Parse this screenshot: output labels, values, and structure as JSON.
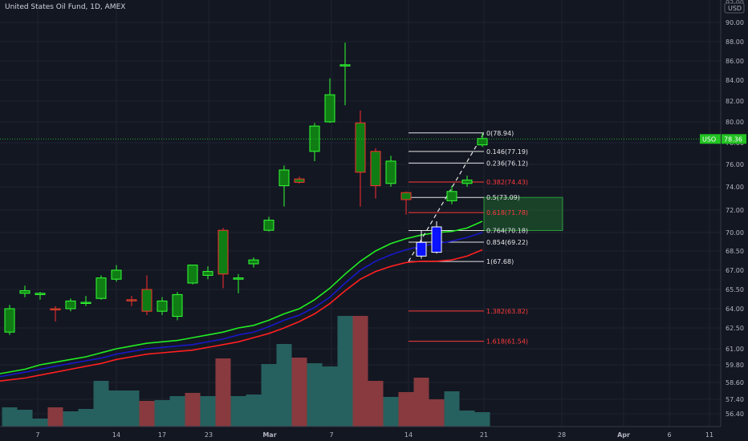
{
  "header": {
    "title": "United States Oil Fund, 1D, AMEX"
  },
  "currency_label": "USD",
  "price_badge": {
    "symbol": "USO",
    "value": "78.36"
  },
  "colors": {
    "background": "#131722",
    "up_body": "#0f7d14",
    "up_border": "#33ff33",
    "down_body": "#0f7d14",
    "blue_body": "#0a12ff",
    "red_border": "#ff2d2d",
    "ema_green": "#22ee22",
    "ema_blue": "#1818c8",
    "ema_red": "#ff1f1f",
    "volume_up": "#26605f",
    "volume_down": "#883a3e",
    "fib_white": "#e6e6e6",
    "fib_red": "#ff3b3b",
    "badge_green": "#22c322"
  },
  "chart_data": {
    "type": "candlestick",
    "title": "United States Oil Fund, 1D, AMEX",
    "y_axis": {
      "ticks": [
        "90.00",
        "88.00",
        "86.00",
        "84.00",
        "82.00",
        "80.00",
        "78.00",
        "76.00",
        "74.00",
        "72.00",
        "70.00",
        "68.50",
        "67.00",
        "65.50",
        "64.00",
        "62.50",
        "61.00",
        "59.80",
        "58.60",
        "57.40",
        "56.40"
      ],
      "top_partial": "92.00"
    },
    "x_axis": {
      "ticks": [
        "7",
        "14",
        "17",
        "23",
        "Mar",
        "7",
        "14",
        "21",
        "28",
        "Apr",
        "6",
        "11"
      ]
    },
    "candles": [
      {
        "o": 62.2,
        "h": 64.3,
        "l": 62.0,
        "c": 64.0,
        "color": "up"
      },
      {
        "o": 65.2,
        "h": 65.8,
        "l": 64.9,
        "c": 65.4,
        "color": "up"
      },
      {
        "o": 65.1,
        "h": 65.3,
        "l": 64.7,
        "c": 65.2,
        "color": "up"
      },
      {
        "o": 64.0,
        "h": 64.2,
        "l": 63.0,
        "c": 64.0,
        "color": "down"
      },
      {
        "o": 64.0,
        "h": 64.8,
        "l": 63.8,
        "c": 64.6,
        "color": "up"
      },
      {
        "o": 64.5,
        "h": 65.0,
        "l": 64.2,
        "c": 64.5,
        "color": "up"
      },
      {
        "o": 64.8,
        "h": 66.6,
        "l": 64.7,
        "c": 66.4,
        "color": "up"
      },
      {
        "o": 66.3,
        "h": 67.4,
        "l": 66.1,
        "c": 67.0,
        "color": "up"
      },
      {
        "o": 64.7,
        "h": 65.0,
        "l": 64.2,
        "c": 64.7,
        "color": "down"
      },
      {
        "o": 65.5,
        "h": 66.6,
        "l": 63.5,
        "c": 63.8,
        "color": "down"
      },
      {
        "o": 64.6,
        "h": 64.9,
        "l": 63.5,
        "c": 63.8,
        "color": "up"
      },
      {
        "o": 63.4,
        "h": 65.3,
        "l": 63.1,
        "c": 65.1,
        "color": "up"
      },
      {
        "o": 66.0,
        "h": 67.4,
        "l": 65.9,
        "c": 67.4,
        "color": "up"
      },
      {
        "o": 66.6,
        "h": 67.3,
        "l": 66.3,
        "c": 66.9,
        "color": "up"
      },
      {
        "o": 70.2,
        "h": 70.4,
        "l": 65.6,
        "c": 66.7,
        "color": "down"
      },
      {
        "o": 66.3,
        "h": 66.7,
        "l": 65.2,
        "c": 66.4,
        "color": "up"
      },
      {
        "o": 67.5,
        "h": 68.0,
        "l": 67.2,
        "c": 67.8,
        "color": "up"
      },
      {
        "o": 70.2,
        "h": 71.4,
        "l": 70.1,
        "c": 71.1,
        "color": "up"
      },
      {
        "o": 74.1,
        "h": 75.9,
        "l": 72.3,
        "c": 75.5,
        "color": "up"
      },
      {
        "o": 74.7,
        "h": 74.9,
        "l": 74.3,
        "c": 74.4,
        "color": "down"
      },
      {
        "o": 77.2,
        "h": 79.9,
        "l": 76.3,
        "c": 79.6,
        "color": "up"
      },
      {
        "o": 80.0,
        "h": 84.2,
        "l": 79.9,
        "c": 82.6,
        "color": "up"
      },
      {
        "o": 85.6,
        "h": 87.9,
        "l": 81.6,
        "c": 85.6,
        "color": "up"
      },
      {
        "o": 79.9,
        "h": 81.1,
        "l": 72.3,
        "c": 75.3,
        "color": "down"
      },
      {
        "o": 77.2,
        "h": 77.5,
        "l": 73.0,
        "c": 74.1,
        "color": "down"
      },
      {
        "o": 74.3,
        "h": 76.8,
        "l": 74.0,
        "c": 76.3,
        "color": "up"
      },
      {
        "o": 73.5,
        "h": 73.6,
        "l": 71.6,
        "c": 72.9,
        "color": "down"
      },
      {
        "o": 68.1,
        "h": 70.2,
        "l": 67.9,
        "c": 69.2,
        "color": "blue"
      },
      {
        "o": 70.5,
        "h": 71.0,
        "l": 68.3,
        "c": 68.4,
        "color": "blue"
      },
      {
        "o": 72.8,
        "h": 74.1,
        "l": 72.5,
        "c": 73.6,
        "color": "up"
      },
      {
        "o": 74.3,
        "h": 75.0,
        "l": 74.0,
        "c": 74.6,
        "color": "up"
      },
      {
        "o": 77.8,
        "h": 78.9,
        "l": 77.6,
        "c": 78.4,
        "color": "up"
      }
    ],
    "volume": [
      {
        "v": 24,
        "color": "up"
      },
      {
        "v": 21,
        "color": "up"
      },
      {
        "v": 10,
        "color": "up"
      },
      {
        "v": 24,
        "color": "down"
      },
      {
        "v": 19,
        "color": "up"
      },
      {
        "v": 22,
        "color": "up"
      },
      {
        "v": 57,
        "color": "up"
      },
      {
        "v": 45,
        "color": "up"
      },
      {
        "v": 45,
        "color": "up"
      },
      {
        "v": 32,
        "color": "down"
      },
      {
        "v": 33,
        "color": "up"
      },
      {
        "v": 38,
        "color": "up"
      },
      {
        "v": 42,
        "color": "down"
      },
      {
        "v": 38,
        "color": "up"
      },
      {
        "v": 85,
        "color": "down"
      },
      {
        "v": 38,
        "color": "up"
      },
      {
        "v": 40,
        "color": "up"
      },
      {
        "v": 78,
        "color": "up"
      },
      {
        "v": 103,
        "color": "up"
      },
      {
        "v": 86,
        "color": "down"
      },
      {
        "v": 79,
        "color": "up"
      },
      {
        "v": 75,
        "color": "up"
      },
      {
        "v": 138,
        "color": "up"
      },
      {
        "v": 138,
        "color": "down"
      },
      {
        "v": 57,
        "color": "down"
      },
      {
        "v": 37,
        "color": "up"
      },
      {
        "v": 43,
        "color": "down"
      },
      {
        "v": 61,
        "color": "down"
      },
      {
        "v": 34,
        "color": "down"
      },
      {
        "v": 44,
        "color": "up"
      },
      {
        "v": 20,
        "color": "up"
      },
      {
        "v": 18,
        "color": "up"
      }
    ],
    "ema_green": [
      59.2,
      59.5,
      59.8,
      60.0,
      60.2,
      60.4,
      60.7,
      61.0,
      61.2,
      61.4,
      61.5,
      61.6,
      61.8,
      62.0,
      62.2,
      62.5,
      62.7,
      63.1,
      63.6,
      64.0,
      64.7,
      65.6,
      66.7,
      67.7,
      68.5,
      69.1,
      69.5,
      69.8,
      70.0,
      70.1,
      70.4,
      71.0
    ],
    "ema_blue": [
      59.0,
      59.3,
      59.5,
      59.7,
      59.9,
      60.1,
      60.3,
      60.6,
      60.8,
      61.0,
      61.1,
      61.2,
      61.3,
      61.5,
      61.7,
      62.0,
      62.2,
      62.6,
      63.1,
      63.5,
      64.1,
      64.9,
      66.0,
      67.0,
      67.7,
      68.2,
      68.6,
      68.9,
      69.1,
      69.3,
      69.6,
      70.0
    ],
    "ema_red": [
      58.7,
      58.9,
      59.1,
      59.3,
      59.5,
      59.7,
      59.9,
      60.2,
      60.4,
      60.6,
      60.7,
      60.8,
      60.9,
      61.1,
      61.3,
      61.5,
      61.8,
      62.1,
      62.5,
      63.0,
      63.6,
      64.4,
      65.4,
      66.3,
      66.9,
      67.3,
      67.6,
      67.7,
      67.7,
      67.8,
      68.1,
      68.6
    ],
    "fib_levels": [
      {
        "label": "0(78.94)",
        "value": 78.94,
        "color": "white"
      },
      {
        "label": "0.146(77.19)",
        "value": 77.19,
        "color": "white"
      },
      {
        "label": "0.236(76.12)",
        "value": 76.12,
        "color": "white"
      },
      {
        "label": "0.382(74.43)",
        "value": 74.43,
        "color": "red"
      },
      {
        "label": "0.5(73.09)",
        "value": 73.09,
        "color": "white"
      },
      {
        "label": "0.618(71.78)",
        "value": 71.78,
        "color": "red"
      },
      {
        "label": "0.764(70.18)",
        "value": 70.18,
        "color": "white"
      },
      {
        "label": "0.854(69.22)",
        "value": 69.22,
        "color": "white"
      },
      {
        "label": "1(67.68)",
        "value": 67.68,
        "color": "white"
      },
      {
        "label": "1.382(63.82)",
        "value": 63.82,
        "color": "red"
      },
      {
        "label": "1.618(61.54)",
        "value": 61.54,
        "color": "red"
      }
    ],
    "zone": {
      "y_top": 73.09,
      "y_bottom": 70.18
    },
    "trend_line": {
      "start": 67.68,
      "end": 78.94
    },
    "last_price": 78.36
  }
}
